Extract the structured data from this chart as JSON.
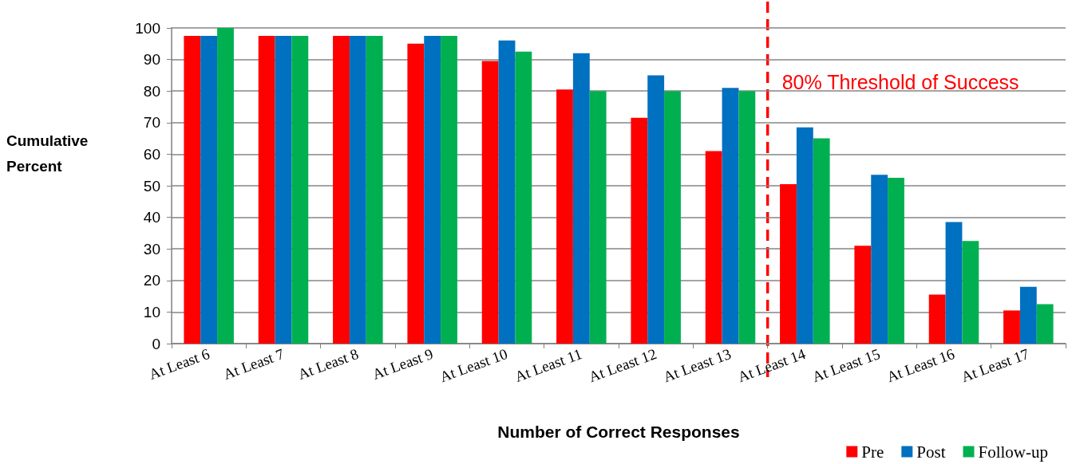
{
  "chart_data": {
    "type": "bar",
    "xlabel": "Number of Correct Responses",
    "ylabel": "Cumulative Percent",
    "categories": [
      "At Least 6",
      "At Least 7",
      "At Least 8",
      "At Least 9",
      "At Least 10",
      "At Least 11",
      "At Least 12",
      "At Least 13",
      "At Least 14",
      "At Least 15",
      "At Least 16",
      "At Least 17"
    ],
    "series": [
      {
        "name": "Pre",
        "color": "#ff0000",
        "values": [
          97.5,
          97.5,
          97.5,
          95,
          89.5,
          80.5,
          71.5,
          61,
          50.5,
          31,
          15.5,
          10.5
        ]
      },
      {
        "name": "Post",
        "color": "#0070c0",
        "values": [
          97.5,
          97.5,
          97.5,
          97.5,
          96,
          92,
          85,
          81,
          68.5,
          53.5,
          38.5,
          18
        ]
      },
      {
        "name": "Follow-up",
        "color": "#00b050",
        "values": [
          100,
          97.5,
          97.5,
          97.5,
          92.5,
          80,
          80,
          80,
          65,
          52.5,
          32.5,
          12.5
        ]
      }
    ],
    "ylim": [
      0,
      100
    ],
    "yticks": [
      0,
      10,
      20,
      30,
      40,
      50,
      60,
      70,
      80,
      90,
      100
    ],
    "grid": "y",
    "legend": "bottom right",
    "ref_lines": [
      {
        "axis": "x",
        "value": "At Least 14",
        "label": "80% Threshold of Success",
        "color": "#ff0000",
        "line_style": "dashed"
      }
    ]
  }
}
